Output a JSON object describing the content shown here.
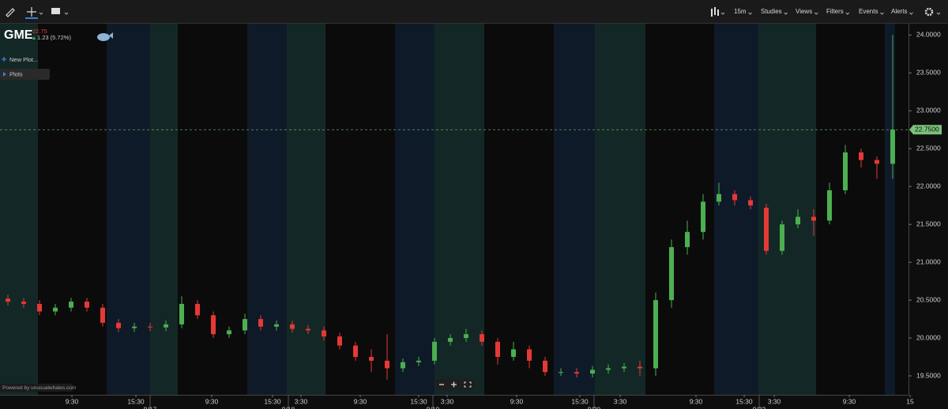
{
  "toolbar": {
    "items": [
      "15m",
      "Studies",
      "Views",
      "Filters",
      "Events",
      "Alerts"
    ]
  },
  "header": {
    "ticker": "GME",
    "price": "22.75",
    "change": "1.23 (5.72%)"
  },
  "sidebar": {
    "items": [
      "New Plot...",
      "Plots"
    ]
  },
  "footer": "Powered by unusualwhales.com",
  "chart_data": {
    "type": "candlestick",
    "up_color": "#4caf50",
    "down_color": "#e53935",
    "open": [
      20.52,
      20.48,
      20.45,
      20.35,
      20.4,
      20.48,
      20.4,
      20.2,
      20.13,
      20.15,
      20.14,
      20.18,
      20.45,
      20.3,
      20.05,
      20.1,
      20.25,
      20.15,
      20.18,
      20.12,
      20.1,
      20.02,
      19.9,
      19.75,
      19.7,
      19.6,
      19.68,
      19.7,
      19.95,
      20.0,
      20.05,
      19.95,
      19.75,
      19.85,
      19.7,
      19.55,
      19.55,
      19.53,
      19.58,
      19.6,
      19.62,
      19.6,
      20.5,
      21.2,
      21.4,
      21.8,
      21.9,
      21.82,
      21.72,
      21.15,
      21.5,
      21.6,
      21.55,
      21.95,
      22.45,
      22.35,
      22.3
    ],
    "high": [
      20.57,
      20.53,
      20.5,
      20.45,
      20.53,
      20.53,
      20.45,
      20.25,
      20.2,
      20.2,
      20.23,
      20.55,
      20.5,
      20.35,
      20.15,
      20.32,
      20.3,
      20.23,
      20.23,
      20.17,
      20.15,
      20.07,
      19.95,
      19.85,
      20.05,
      19.73,
      19.75,
      20.0,
      20.05,
      20.12,
      20.1,
      20.0,
      19.95,
      19.9,
      19.75,
      19.6,
      19.6,
      19.63,
      19.65,
      19.67,
      19.7,
      20.6,
      21.3,
      21.55,
      21.9,
      22.05,
      21.95,
      21.87,
      21.77,
      21.55,
      21.7,
      21.7,
      22.05,
      22.55,
      22.5,
      22.4,
      24.0
    ],
    "low": [
      20.43,
      20.4,
      20.3,
      20.3,
      20.35,
      20.35,
      20.15,
      20.08,
      20.08,
      20.09,
      20.09,
      20.13,
      20.25,
      20.0,
      20.0,
      20.05,
      20.1,
      20.1,
      20.07,
      20.05,
      19.97,
      19.85,
      19.7,
      19.55,
      19.45,
      19.55,
      19.63,
      19.65,
      19.9,
      19.95,
      19.9,
      19.65,
      19.7,
      19.6,
      19.5,
      19.5,
      19.48,
      19.48,
      19.53,
      19.55,
      19.5,
      19.5,
      20.4,
      21.1,
      21.3,
      21.75,
      21.75,
      21.7,
      21.1,
      21.1,
      21.45,
      21.35,
      21.5,
      21.9,
      22.25,
      22.1,
      22.1
    ],
    "close": [
      20.48,
      20.45,
      20.35,
      20.4,
      20.48,
      20.4,
      20.2,
      20.13,
      20.15,
      20.14,
      20.18,
      20.45,
      20.3,
      20.05,
      20.1,
      20.25,
      20.15,
      20.18,
      20.12,
      20.1,
      20.02,
      19.9,
      19.75,
      19.7,
      19.6,
      19.68,
      19.7,
      19.95,
      20.0,
      20.05,
      19.95,
      19.75,
      19.85,
      19.7,
      19.55,
      19.55,
      19.53,
      19.58,
      19.6,
      19.62,
      19.6,
      20.5,
      21.2,
      21.4,
      21.8,
      21.9,
      21.82,
      21.75,
      21.15,
      21.5,
      21.6,
      21.55,
      21.95,
      22.45,
      22.35,
      22.3,
      22.75
    ],
    "xlim": [
      -0.5,
      57.5
    ],
    "xticks": [
      {
        "value": 4.05,
        "label": "9:30"
      },
      {
        "value": 8.1,
        "label": "15:30"
      },
      {
        "value": 12.9,
        "label": "9:30"
      },
      {
        "value": 16.75,
        "label": "15:30"
      },
      {
        "value": 18.55,
        "label": "3:30"
      },
      {
        "value": 22.3,
        "label": "9:30"
      },
      {
        "value": 26.0,
        "label": "15:30"
      },
      {
        "value": 27.8,
        "label": "3:30"
      },
      {
        "value": 32.2,
        "label": "9:30"
      },
      {
        "value": 36.2,
        "label": "15:30"
      },
      {
        "value": 38.75,
        "label": "3:30"
      },
      {
        "value": 43.55,
        "label": "9:30"
      },
      {
        "value": 46.6,
        "label": "15:30"
      },
      {
        "value": 48.5,
        "label": "3:30"
      },
      {
        "value": 53.25,
        "label": "9:30"
      },
      {
        "value": 57.1,
        "label": "15"
      }
    ],
    "date_ticks": [
      {
        "value": 9.0,
        "label": "9/17"
      },
      {
        "value": 17.75,
        "label": "9/18"
      },
      {
        "value": 26.9,
        "label": "9/19"
      },
      {
        "value": 37.1,
        "label": "9/20"
      },
      {
        "value": 47.55,
        "label": "9/23"
      }
    ],
    "ylim": [
      19.25,
      24.15
    ],
    "yticks": [
      {
        "value": 19.5,
        "label": "19.5000"
      },
      {
        "value": 20.0,
        "label": "20.0000"
      },
      {
        "value": 20.5,
        "label": "20.5000"
      },
      {
        "value": 21.0,
        "label": "21.0000"
      },
      {
        "value": 21.5,
        "label": "21.5000"
      },
      {
        "value": 22.0,
        "label": "22.0000"
      },
      {
        "value": 22.5,
        "label": "22.5000"
      },
      {
        "value": 23.0,
        "label": "23.0000"
      },
      {
        "value": 23.5,
        "label": "23.5000"
      },
      {
        "value": 24.0,
        "label": "24.0000"
      }
    ],
    "last_price": {
      "value": 22.75,
      "label": "22.7500"
    },
    "last_price_color": "#7bc27b"
  }
}
